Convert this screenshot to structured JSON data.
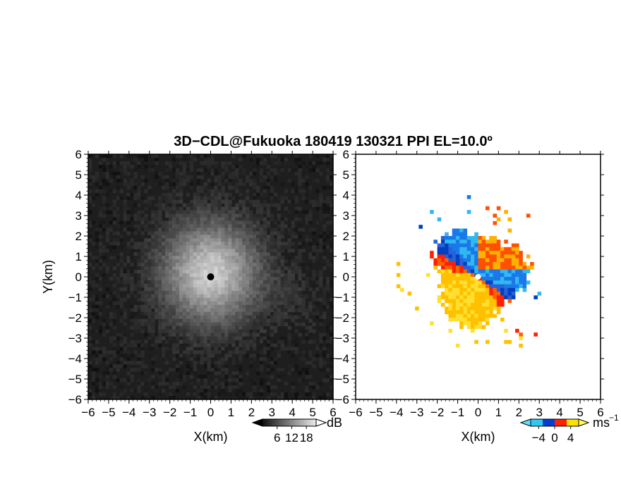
{
  "title": "3D−CDL@Fukuoka 180419 130321 PPI EL=10.0º",
  "chart_data": [
    {
      "type": "heatmap",
      "field": "backscatter intensity",
      "xlabel": "X(km)",
      "ylabel": "Y(km)",
      "xlim": [
        -6,
        6
      ],
      "ylim": [
        -6,
        6
      ],
      "xticks": [
        "−6",
        "−5",
        "−4",
        "−3",
        "−2",
        "−1",
        "0",
        "1",
        "2",
        "3",
        "4",
        "5",
        "6"
      ],
      "yticks": [
        "6",
        "5",
        "4",
        "3",
        "2",
        "1",
        "0",
        "−1",
        "−2",
        "−3",
        "−4",
        "−5",
        "−6"
      ],
      "colorbar": {
        "unit": "dB",
        "ticks": [
          "6",
          "12",
          "18"
        ],
        "tick_values": [
          6,
          12,
          18
        ],
        "range": [
          0,
          22
        ],
        "colormap": "grayscale"
      }
    },
    {
      "type": "heatmap",
      "field": "Doppler velocity",
      "xlabel": "X(km)",
      "ylabel": "",
      "xlim": [
        -6,
        6
      ],
      "ylim": [
        -6,
        6
      ],
      "xticks": [
        "−6",
        "−5",
        "−4",
        "−3",
        "−2",
        "−1",
        "0",
        "1",
        "2",
        "3",
        "4",
        "5",
        "6"
      ],
      "yticks": [
        "6",
        "5",
        "4",
        "3",
        "2",
        "1",
        "0",
        "−1",
        "−2",
        "−3",
        "−4",
        "−5",
        "−6"
      ],
      "colorbar": {
        "unit": "ms",
        "unit_exponent": "−1",
        "ticks": [
          "−4",
          "0",
          "4"
        ],
        "tick_values": [
          -4,
          0,
          4
        ],
        "range": [
          -6,
          6
        ],
        "colormap": [
          "#30c8f0",
          "#0040d0",
          "#ff2000",
          "#ffe000"
        ]
      }
    }
  ]
}
